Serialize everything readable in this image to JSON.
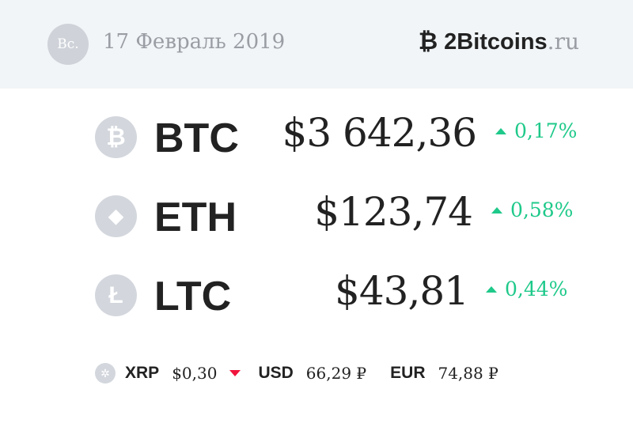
{
  "header": {
    "day": "Вс.",
    "date": "17 Февраль 2019",
    "logo": {
      "mark": "₿",
      "name": "2Bitcoins",
      "tld": ".ru"
    }
  },
  "coins": [
    {
      "icon": "bitcoin-icon",
      "glyph": "₿",
      "ticker": "BTC",
      "price": "$3 642,36",
      "change": "0,17%",
      "direction": "up"
    },
    {
      "icon": "ethereum-icon",
      "glyph": "◆",
      "ticker": "ETH",
      "price": "$123,74",
      "change": "0,58%",
      "direction": "up"
    },
    {
      "icon": "litecoin-icon",
      "glyph": "Ł",
      "ticker": "LTC",
      "price": "$43,81",
      "change": "0,44%",
      "direction": "up"
    }
  ],
  "bottom": {
    "xrp": {
      "ticker": "XRP",
      "value": "$0,30",
      "direction": "down"
    },
    "usd": {
      "ticker": "USD",
      "value": "66,29 ₽"
    },
    "eur": {
      "ticker": "EUR",
      "value": "74,88 ₽"
    }
  },
  "colors": {
    "up": "#1ec98a",
    "down": "#f0143c",
    "header_bg": "#f1f5f8"
  }
}
